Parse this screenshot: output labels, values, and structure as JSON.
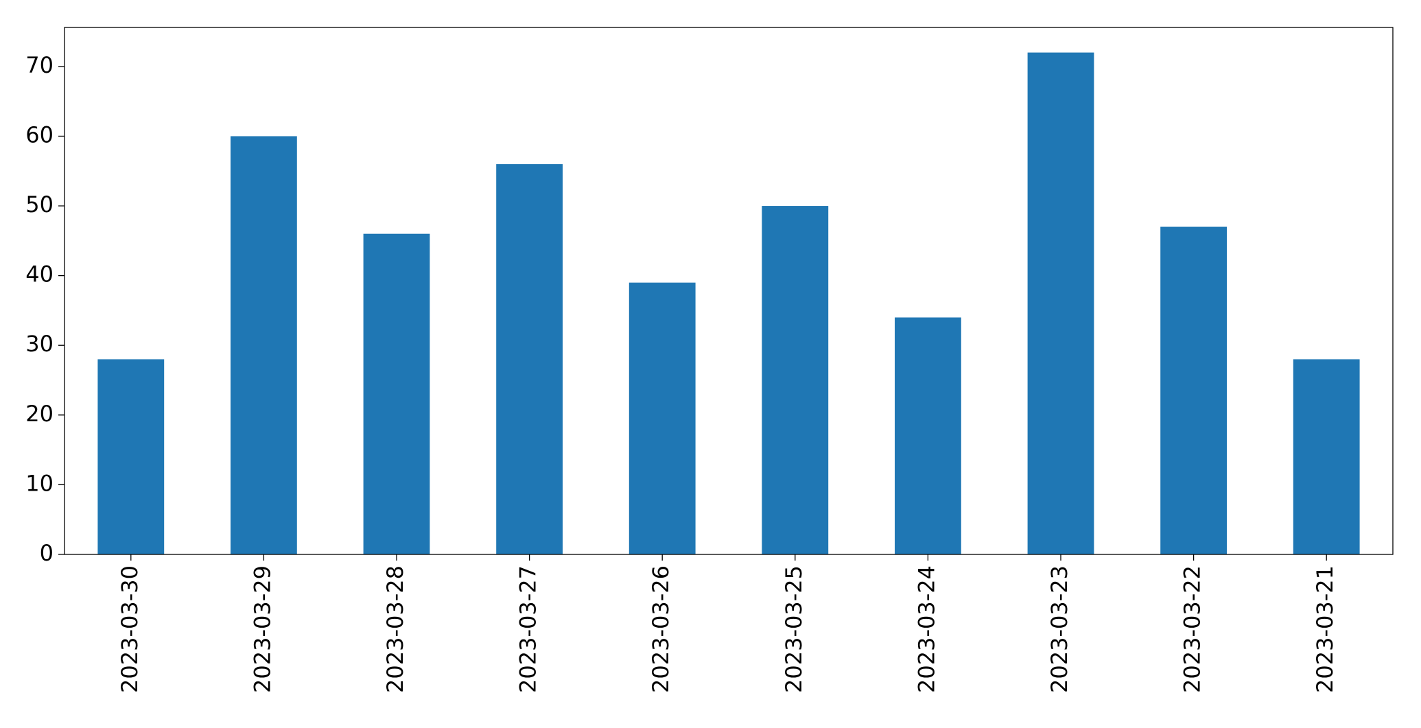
{
  "chart_data": {
    "type": "bar",
    "categories": [
      "2023-03-30",
      "2023-03-29",
      "2023-03-28",
      "2023-03-27",
      "2023-03-26",
      "2023-03-25",
      "2023-03-24",
      "2023-03-23",
      "2023-03-22",
      "2023-03-21"
    ],
    "values": [
      28,
      60,
      46,
      56,
      39,
      50,
      34,
      72,
      47,
      28
    ],
    "color": "#1f77b4",
    "ylim": [
      0,
      75.6
    ],
    "yticks": [
      0,
      10,
      20,
      30,
      40,
      50,
      60,
      70
    ],
    "grid": false
  }
}
